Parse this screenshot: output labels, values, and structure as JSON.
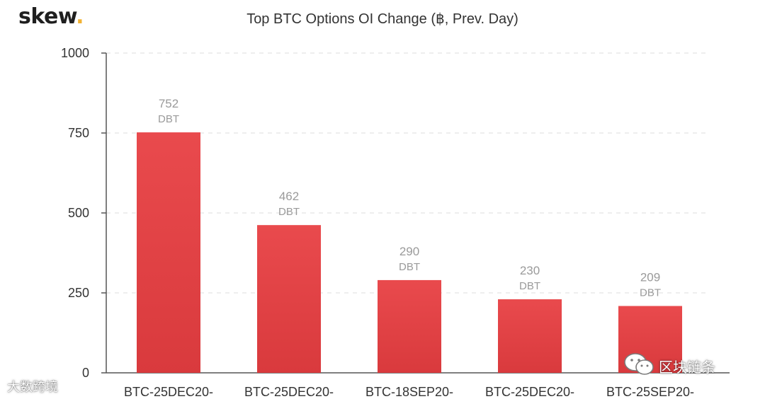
{
  "brand": {
    "name": "skew",
    "dot": "."
  },
  "chart_data": {
    "type": "bar",
    "title": "Top BTC Options OI Change (฿, Prev. Day)",
    "categories": [
      "BTC-25DEC20-",
      "BTC-25DEC20-",
      "BTC-18SEP20-",
      "BTC-25DEC20-",
      "BTC-25SEP20-"
    ],
    "values": [
      752,
      462,
      290,
      230,
      209
    ],
    "data_labels": [
      "DBT",
      "DBT",
      "DBT",
      "DBT",
      "DBT"
    ],
    "ylim": [
      0,
      1000
    ],
    "yticks": [
      0,
      250,
      500,
      750,
      1000
    ],
    "grid": "dashed horizontal",
    "colors": {
      "bar": "#e94a4d",
      "label": "#9a9a9a",
      "axis": "#555555",
      "grid": "#dddddd"
    }
  },
  "watermarks": {
    "left_text": "大数跨境",
    "right_text": "区块链条",
    "right_icon": "wechat-icon"
  }
}
